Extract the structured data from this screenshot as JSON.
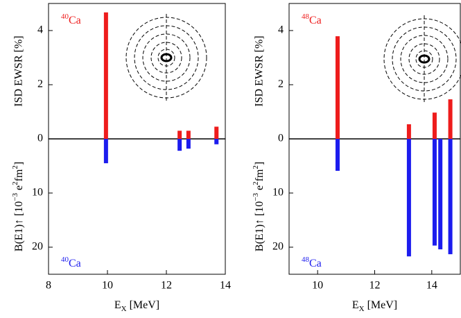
{
  "chart_data": [
    {
      "type": "bar",
      "xlabel": [
        "E",
        "X",
        " [MeV]"
      ],
      "xlim": [
        8,
        14
      ],
      "xticks": [
        8,
        10,
        12,
        14
      ],
      "upper": {
        "ylabel": "ISD EWSR [%]",
        "label": [
          "40",
          "Ca"
        ],
        "color": "#ee1c1c",
        "ylim": [
          0,
          5
        ],
        "yticks": [
          0,
          2,
          4
        ],
        "x": [
          9.95,
          12.45,
          12.75,
          13.7
        ],
        "values": [
          4.67,
          0.3,
          0.3,
          0.45
        ]
      },
      "lower": {
        "ylabel": [
          "B(E1)↑ [10",
          "−3",
          " e",
          "2",
          "fm",
          "2",
          "]"
        ],
        "label": [
          "40",
          "Ca"
        ],
        "color": "#1c1cee",
        "ylim": [
          0,
          25
        ],
        "yticks": [
          10,
          20
        ],
        "x": [
          9.95,
          12.45,
          12.75,
          13.7
        ],
        "values": [
          4.5,
          2.2,
          1.8,
          1.0
        ]
      }
    },
    {
      "type": "bar",
      "xlabel": [
        "E",
        "X",
        " [MeV]"
      ],
      "xlim": [
        9,
        15
      ],
      "xticks": [
        10,
        12,
        14
      ],
      "upper": {
        "ylabel": "ISD EWSR [%]",
        "label": [
          "48",
          "Ca"
        ],
        "color": "#ee1c1c",
        "ylim": [
          0,
          5
        ],
        "yticks": [
          0,
          2,
          4
        ],
        "x": [
          10.7,
          13.2,
          14.1,
          14.65
        ],
        "values": [
          3.79,
          0.54,
          0.97,
          1.46
        ]
      },
      "lower": {
        "ylabel": [
          "B(E1)↑ [10",
          "−3",
          " e",
          "2",
          "fm",
          "2",
          "]"
        ],
        "label": [
          "48",
          "Ca"
        ],
        "color": "#1c1cee",
        "ylim": [
          0,
          25
        ],
        "yticks": [
          10,
          20
        ],
        "x": [
          10.7,
          13.2,
          14.1,
          14.3,
          14.65
        ],
        "values": [
          5.9,
          21.7,
          19.7,
          20.4,
          21.3
        ]
      }
    }
  ]
}
